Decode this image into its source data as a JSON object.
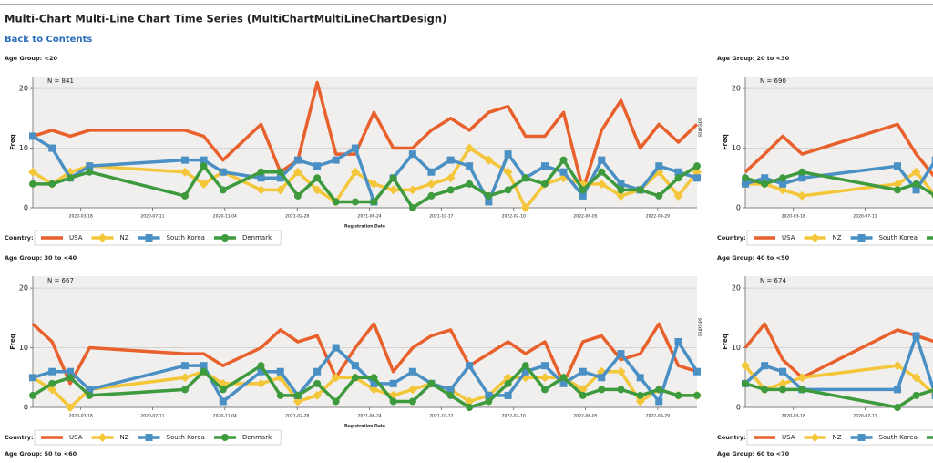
{
  "header": {
    "title": "Multi-Chart Multi-Line Chart Time Series (MultiChartMultiLineChartDesign)",
    "link": "Back to Contents"
  },
  "footer_labels": [
    "Age Group: 50 to <60",
    "Age Group: 60 to <70"
  ],
  "chart_data": [
    {
      "type": "line",
      "title": "Age Group: <20",
      "annotation": "N = 841",
      "side_note": "sdfsdfds",
      "x_label": "Registration Date",
      "y_label": "Freq",
      "legend_title": "Country:",
      "x": [
        "2020-01-01",
        "2020-02-01",
        "2020-03-01",
        "2020-04-01",
        "2020-09-01",
        "2020-10-01",
        "2020-11-01",
        "2021-01-01",
        "2021-02-01",
        "2021-03-01",
        "2021-04-01",
        "2021-05-01",
        "2021-06-01",
        "2021-07-01",
        "2021-08-01",
        "2021-09-01",
        "2021-10-01",
        "2021-11-01",
        "2021-12-01",
        "2022-01-01",
        "2022-02-01",
        "2022-03-01",
        "2022-04-01",
        "2022-05-01",
        "2022-06-01",
        "2022-07-01",
        "2022-08-01",
        "2022-09-01",
        "2022-10-01",
        "2022-11-01",
        "2022-12-01"
      ],
      "xlim": [
        "2020-01-01",
        "2022-12-01"
      ],
      "xticks": [
        "2020-03-18",
        "2020-07-11",
        "2020-11-04",
        "2021-02-28",
        "2021-06-24",
        "2021-10-17",
        "2022-02-10",
        "2022-06-05",
        "2022-09-29"
      ],
      "ylim": [
        0,
        22
      ],
      "yticks": [
        0,
        10,
        20
      ],
      "grid": true,
      "series": [
        {
          "name": "USA",
          "color": "#e8602c",
          "marker": "none",
          "values": [
            12,
            13,
            12,
            13,
            13,
            12,
            8,
            14,
            6,
            8,
            21,
            9,
            9,
            16,
            10,
            10,
            13,
            15,
            13,
            16,
            17,
            12,
            12,
            16,
            3,
            13,
            18,
            10,
            14,
            11,
            14
          ]
        },
        {
          "name": "NZ",
          "color": "#f4c63a",
          "marker": "diamond",
          "values": [
            6,
            4,
            6,
            7,
            6,
            4,
            6,
            3,
            3,
            6,
            3,
            1,
            6,
            4,
            3,
            3,
            4,
            5,
            10,
            8,
            6,
            0,
            4,
            5,
            4,
            4,
            2,
            3,
            6,
            2,
            6
          ]
        },
        {
          "name": "South Korea",
          "color": "#4a90c4",
          "marker": "square",
          "values": [
            12,
            10,
            5,
            7,
            8,
            8,
            6,
            5,
            5,
            8,
            7,
            8,
            10,
            1,
            5,
            9,
            6,
            8,
            7,
            1,
            9,
            5,
            7,
            6,
            2,
            8,
            4,
            3,
            7,
            6,
            5
          ]
        },
        {
          "name": "Denmark",
          "color": "#3d9a3d",
          "marker": "circle",
          "values": [
            4,
            4,
            5,
            6,
            2,
            7,
            3,
            6,
            6,
            2,
            5,
            1,
            1,
            1,
            5,
            0,
            2,
            3,
            4,
            2,
            3,
            5,
            4,
            8,
            3,
            6,
            3,
            3,
            2,
            5,
            7
          ]
        }
      ]
    },
    {
      "type": "line",
      "title": "Age Group: 20 to <30",
      "annotation": "N = 690",
      "y_label": "Freq",
      "legend_title": "Country:",
      "x": [
        "2020-01-01",
        "2020-02-01",
        "2020-03-01",
        "2020-04-01",
        "2020-09-01",
        "2020-10-01",
        "2020-11-01"
      ],
      "xlim": [
        "2020-01-01",
        "2022-12-01"
      ],
      "xticks": [
        "2020-03-18",
        "2020-07-11"
      ],
      "ylim": [
        0,
        22
      ],
      "yticks": [
        0,
        10,
        20
      ],
      "grid": true,
      "series": [
        {
          "name": "USA",
          "color": "#e8602c",
          "marker": "none",
          "values": [
            6,
            9,
            12,
            9,
            14,
            9,
            5
          ]
        },
        {
          "name": "NZ",
          "color": "#f4c63a",
          "marker": "diamond",
          "values": [
            4,
            4,
            3,
            2,
            4,
            6,
            2
          ]
        },
        {
          "name": "South Korea",
          "color": "#4a90c4",
          "marker": "square",
          "values": [
            4,
            5,
            4,
            5,
            7,
            3,
            8
          ]
        },
        {
          "name": "Denmark",
          "color": "#3d9a3d",
          "marker": "circle",
          "values": [
            5,
            4,
            5,
            6,
            3,
            4,
            2
          ]
        }
      ]
    },
    {
      "type": "line",
      "title": "Age Group: 30 to <40",
      "annotation": "N = 667",
      "side_note": "sdfsdfds",
      "x_label": "Registration Date",
      "y_label": "Freq",
      "legend_title": "Country:",
      "x": [
        "2020-01-01",
        "2020-02-01",
        "2020-03-01",
        "2020-04-01",
        "2020-09-01",
        "2020-10-01",
        "2020-11-01",
        "2021-01-01",
        "2021-02-01",
        "2021-03-01",
        "2021-04-01",
        "2021-05-01",
        "2021-06-01",
        "2021-07-01",
        "2021-08-01",
        "2021-09-01",
        "2021-10-01",
        "2021-11-01",
        "2021-12-01",
        "2022-01-01",
        "2022-02-01",
        "2022-03-01",
        "2022-04-01",
        "2022-05-01",
        "2022-06-01",
        "2022-07-01",
        "2022-08-01",
        "2022-09-01",
        "2022-10-01",
        "2022-11-01",
        "2022-12-01"
      ],
      "xlim": [
        "2020-01-01",
        "2022-12-01"
      ],
      "xticks": [
        "2020-03-18",
        "2020-07-11",
        "2020-11-04",
        "2021-02-28",
        "2021-06-24",
        "2021-10-17",
        "2022-02-10",
        "2022-06-05",
        "2022-09-29"
      ],
      "ylim": [
        0,
        22
      ],
      "yticks": [
        0,
        10,
        20
      ],
      "grid": true,
      "series": [
        {
          "name": "USA",
          "color": "#e8602c",
          "marker": "none",
          "values": [
            14,
            11,
            4,
            10,
            9,
            9,
            7,
            10,
            13,
            11,
            12,
            5,
            10,
            14,
            6,
            10,
            12,
            13,
            7,
            9,
            11,
            9,
            11,
            4,
            11,
            12,
            8,
            9,
            14,
            7,
            6
          ]
        },
        {
          "name": "NZ",
          "color": "#f4c63a",
          "marker": "diamond",
          "values": [
            5,
            3,
            0,
            3,
            5,
            6,
            4,
            4,
            5,
            1,
            2,
            5,
            5,
            3,
            2,
            3,
            4,
            3,
            1,
            2,
            5,
            5,
            5,
            5,
            3,
            6,
            6,
            1,
            3,
            2,
            2
          ]
        },
        {
          "name": "South Korea",
          "color": "#4a90c4",
          "marker": "square",
          "values": [
            5,
            6,
            6,
            3,
            7,
            7,
            1,
            6,
            6,
            2,
            6,
            10,
            7,
            4,
            4,
            6,
            4,
            3,
            7,
            2,
            2,
            6,
            7,
            4,
            6,
            5,
            9,
            5,
            1,
            11,
            6
          ]
        },
        {
          "name": "Denmark",
          "color": "#3d9a3d",
          "marker": "circle",
          "values": [
            2,
            4,
            5,
            2,
            3,
            6,
            3,
            7,
            2,
            2,
            4,
            1,
            5,
            5,
            1,
            1,
            4,
            2,
            0,
            1,
            4,
            7,
            3,
            5,
            2,
            3,
            3,
            2,
            3,
            2,
            2
          ]
        }
      ]
    },
    {
      "type": "line",
      "title": "Age Group: 40 to <50",
      "annotation": "N = 674",
      "y_label": "Freq",
      "legend_title": "Country:",
      "x": [
        "2020-01-01",
        "2020-02-01",
        "2020-03-01",
        "2020-04-01",
        "2020-09-01",
        "2020-10-01",
        "2020-11-01"
      ],
      "xlim": [
        "2020-01-01",
        "2022-12-01"
      ],
      "xticks": [
        "2020-03-18",
        "2020-07-11"
      ],
      "ylim": [
        0,
        22
      ],
      "yticks": [
        0,
        10,
        20
      ],
      "grid": true,
      "series": [
        {
          "name": "USA",
          "color": "#e8602c",
          "marker": "none",
          "values": [
            10,
            14,
            8,
            5,
            13,
            12,
            11
          ]
        },
        {
          "name": "NZ",
          "color": "#f4c63a",
          "marker": "diamond",
          "values": [
            7,
            3,
            4,
            5,
            7,
            5,
            2
          ]
        },
        {
          "name": "South Korea",
          "color": "#4a90c4",
          "marker": "square",
          "values": [
            4,
            7,
            6,
            3,
            3,
            12,
            2
          ]
        },
        {
          "name": "Denmark",
          "color": "#3d9a3d",
          "marker": "circle",
          "values": [
            4,
            3,
            3,
            3,
            0,
            2,
            3
          ]
        }
      ]
    }
  ]
}
